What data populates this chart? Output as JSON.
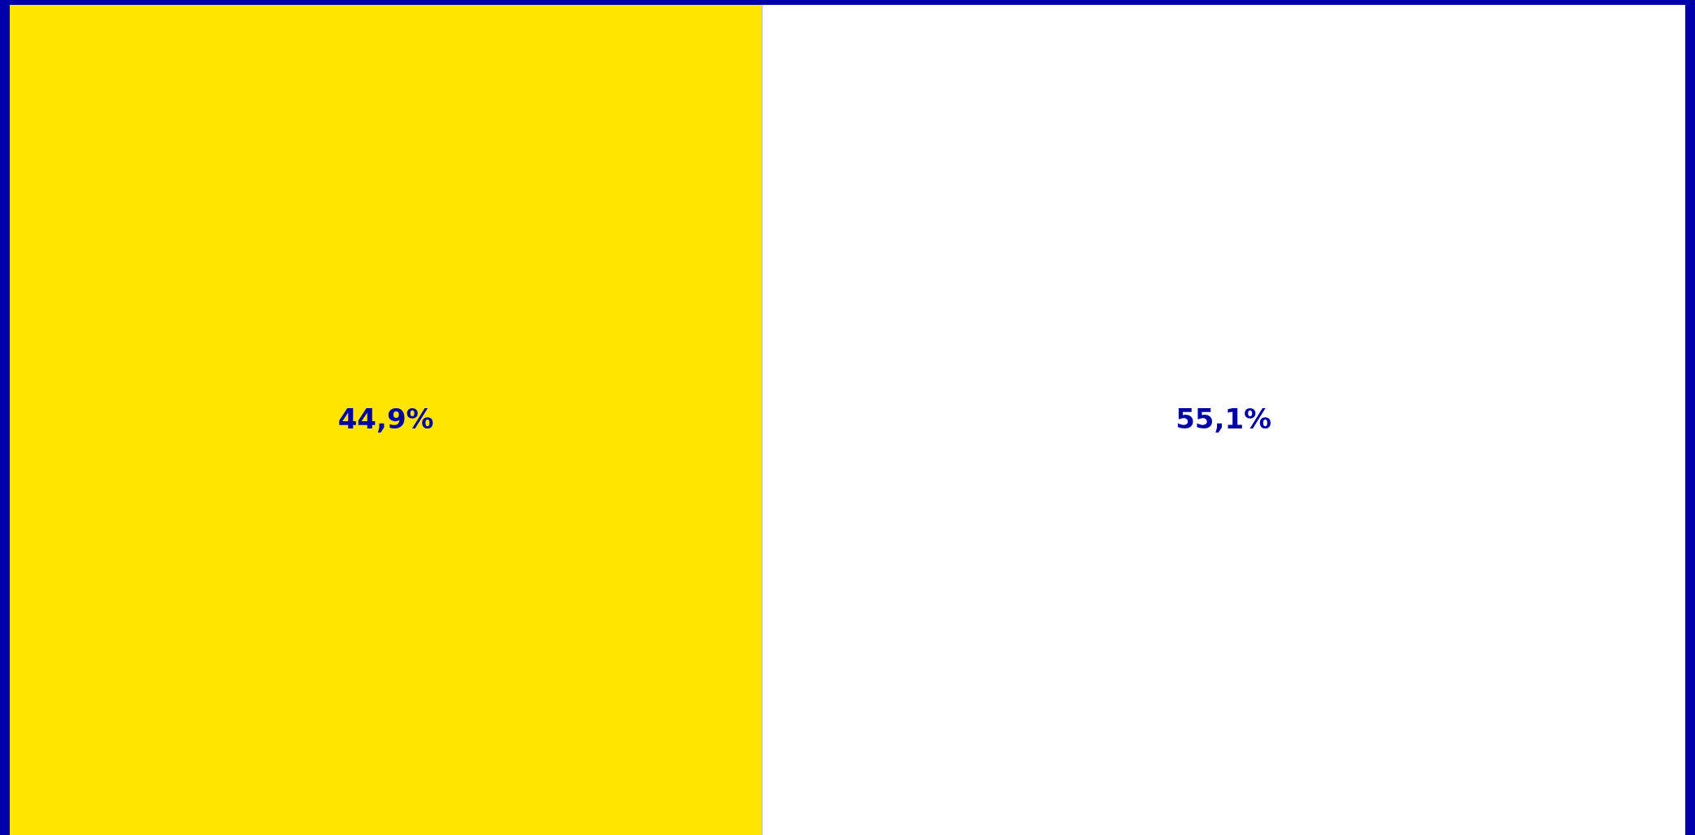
{
  "chart_data": {
    "type": "bar",
    "orientation": "horizontal",
    "stacked": true,
    "categories": [
      null
    ],
    "xlim": [
      0,
      100
    ],
    "tick_labels": false,
    "legend": false,
    "series": [
      {
        "color": "#ffe500",
        "values": [
          44.9
        ],
        "value_labels": [
          "44,9%"
        ]
      },
      {
        "color": "#ffffff",
        "values": [
          55.1
        ],
        "value_labels": [
          "55,1%"
        ]
      }
    ]
  }
}
